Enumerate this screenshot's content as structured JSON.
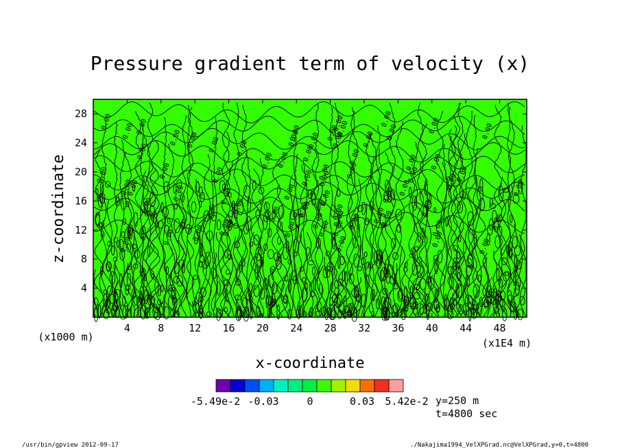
{
  "chart_data": {
    "type": "contour",
    "title": "Pressure gradient term of velocity (x)",
    "xlabel": "x-coordinate",
    "ylabel": "z-coordinate",
    "x_unit_left": "(x1000 m)",
    "x_unit_right": "(x1E4 m)",
    "xlim": [
      0,
      51.2
    ],
    "ylim": [
      0,
      30
    ],
    "x_ticks": [
      4,
      8,
      12,
      16,
      20,
      24,
      28,
      32,
      36,
      40,
      44,
      48
    ],
    "y_ticks": [
      4,
      8,
      12,
      16,
      20,
      24,
      28
    ],
    "contour_label": "0.00",
    "field_fill": "#33ff00",
    "colorbar": {
      "colors": [
        "#7000b0",
        "#0000d8",
        "#0050f0",
        "#00b0f8",
        "#00f0c0",
        "#00f080",
        "#00f040",
        "#40f800",
        "#a0f000",
        "#f0e000",
        "#f87000",
        "#f03020",
        "#f8a0a0"
      ],
      "labels": [
        "-5.49e-2",
        "-0.03",
        "0",
        "0.03",
        "5.42e-2"
      ],
      "min": -0.0549,
      "max": 0.0542
    },
    "meta": [
      "y=250 m",
      "t=4800 sec"
    ]
  },
  "footer": {
    "left": "/usr/bin/gpview  2012-09-17",
    "right": "./Nakajima1994_VelXPGrad.nc@VelXPGrad,y=0,t=4800"
  }
}
